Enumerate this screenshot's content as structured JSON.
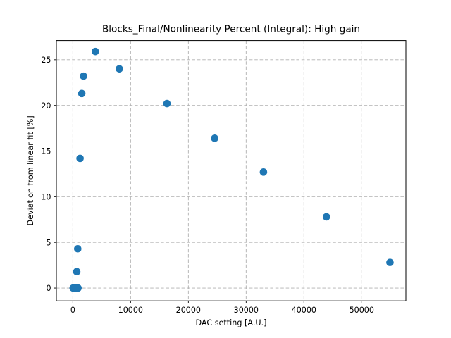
{
  "chart_data": {
    "type": "scatter",
    "title": "Blocks_Final/Nonlinearity Percent (Integral): High gain",
    "xlabel": "DAC setting [A.U.]",
    "ylabel": "Deviation from linear fit [%]",
    "xlim": [
      -2850,
      57650
    ],
    "ylim": [
      -1.4,
      27.1
    ],
    "x_ticks": [
      0,
      10000,
      20000,
      30000,
      40000,
      50000
    ],
    "y_ticks": [
      0,
      5,
      10,
      15,
      20,
      25
    ],
    "grid": true,
    "grid_style": "dashed",
    "legend": "none",
    "colors": {
      "point": "#1f77b4",
      "grid": "#b0b0b0",
      "spine": "#000000",
      "background": "#ffffff",
      "text": "#000000"
    },
    "points": [
      {
        "x": 50,
        "y": 0.0
      },
      {
        "x": 300,
        "y": -0.05
      },
      {
        "x": 600,
        "y": 0.05
      },
      {
        "x": 900,
        "y": 0.0
      },
      {
        "x": 680,
        "y": 1.8
      },
      {
        "x": 850,
        "y": 4.3
      },
      {
        "x": 1250,
        "y": 14.2
      },
      {
        "x": 1550,
        "y": 21.3
      },
      {
        "x": 1850,
        "y": 23.2
      },
      {
        "x": 3900,
        "y": 25.9
      },
      {
        "x": 8050,
        "y": 24.0
      },
      {
        "x": 16300,
        "y": 20.2
      },
      {
        "x": 24550,
        "y": 16.4
      },
      {
        "x": 33000,
        "y": 12.7
      },
      {
        "x": 43900,
        "y": 7.8
      },
      {
        "x": 54900,
        "y": 2.8
      }
    ]
  }
}
